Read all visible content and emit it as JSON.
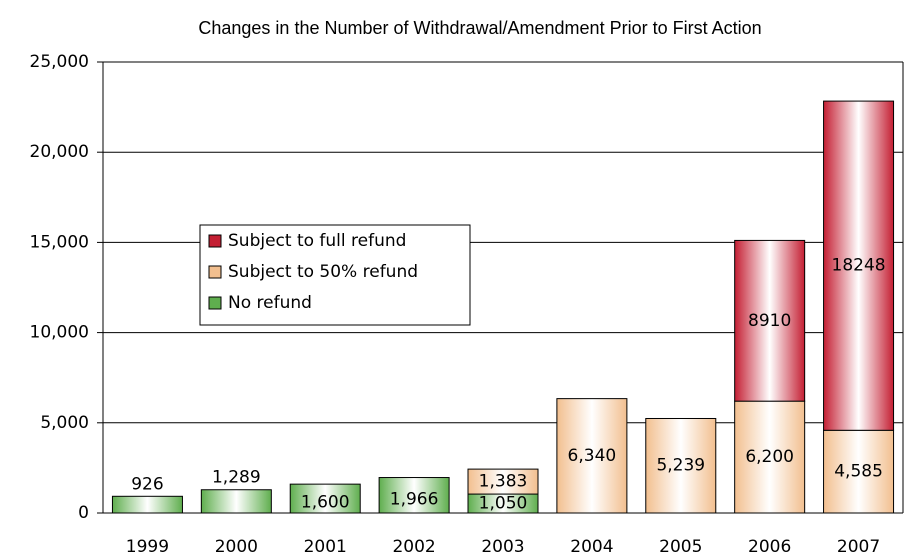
{
  "chart_data": {
    "type": "stacked_bar",
    "title": "Changes in the Number of Withdrawal/Amendment Prior to First Action",
    "categories": [
      "1999",
      "2000",
      "2001",
      "2002",
      "2003",
      "2004",
      "2005",
      "2006",
      "2007"
    ],
    "series": [
      {
        "name": "No refund",
        "color": "#5fae4e",
        "values": [
          926,
          1289,
          1600,
          1966,
          1050,
          null,
          null,
          null,
          null
        ],
        "value_labels": [
          "926",
          "1,289",
          "1,600",
          "1,966",
          "1,050",
          null,
          null,
          null,
          null
        ]
      },
      {
        "name": "Subject to 50% refund",
        "color": "#f2bf8f",
        "values": [
          null,
          null,
          null,
          null,
          1383,
          6340,
          5239,
          6200,
          4585
        ],
        "value_labels": [
          null,
          null,
          null,
          null,
          "1,383",
          "6,340",
          "5,239",
          "6,200",
          "4,585"
        ]
      },
      {
        "name": "Subject to full refund",
        "color": "#c41f33",
        "values": [
          null,
          null,
          null,
          null,
          null,
          null,
          null,
          8910,
          18248
        ]
      }
    ],
    "ylim": [
      0,
      25000
    ],
    "yticks": [
      0,
      {
        "value": 5000,
        "label": "5,000"
      },
      {
        "value": 10000,
        "label": "10,000"
      },
      {
        "value": 15000,
        "label": "15,000"
      },
      {
        "value": 20000,
        "label": "20,000"
      },
      {
        "value": 25000,
        "label": "25,000"
      }
    ],
    "grid": true
  }
}
